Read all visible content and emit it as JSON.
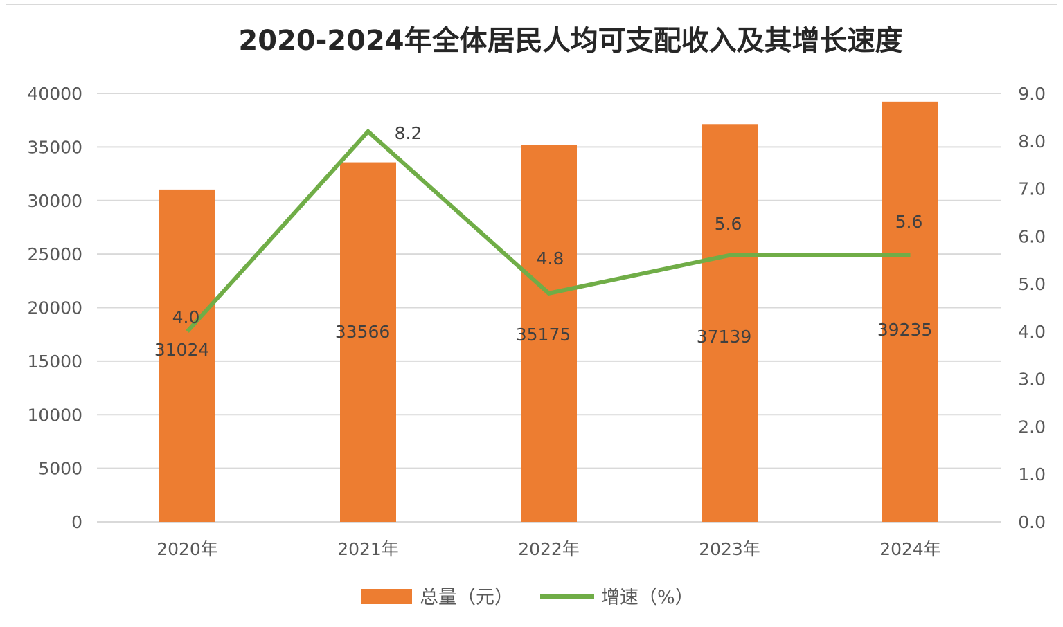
{
  "chart_data": {
    "type": "bar",
    "title": "2020-2024年全体居民人均可支配收入及其增长速度",
    "categories": [
      "2020年",
      "2021年",
      "2022年",
      "2023年",
      "2024年"
    ],
    "series": [
      {
        "name": "总量（元）",
        "type": "bar",
        "axis": "left",
        "color": "#ed7d31",
        "values": [
          31024,
          33566,
          35175,
          37139,
          39235
        ],
        "labels": [
          "31024",
          "33566",
          "35175",
          "37139",
          "39235"
        ]
      },
      {
        "name": "增速（%）",
        "type": "line",
        "axis": "right",
        "color": "#70ad47",
        "values": [
          4.0,
          8.2,
          4.8,
          5.6,
          5.6
        ],
        "labels": [
          "4.0",
          "8.2",
          "4.8",
          "5.6",
          "5.6"
        ]
      }
    ],
    "y_left": {
      "ylim": [
        0,
        40000
      ],
      "ticks": [
        0,
        5000,
        10000,
        15000,
        20000,
        25000,
        30000,
        35000,
        40000
      ],
      "tick_labels": [
        "0",
        "5000",
        "10000",
        "15000",
        "20000",
        "25000",
        "30000",
        "35000",
        "40000"
      ]
    },
    "y_right": {
      "ylim": [
        0,
        9
      ],
      "ticks": [
        0,
        1,
        2,
        3,
        4,
        5,
        6,
        7,
        8,
        9
      ],
      "tick_labels": [
        "0.0",
        "1.0",
        "2.0",
        "3.0",
        "4.0",
        "5.0",
        "6.0",
        "7.0",
        "8.0",
        "9.0"
      ]
    },
    "grid": true,
    "legend_position": "bottom",
    "colors": {
      "grid": "#d9d9d9",
      "axis_text": "#595959",
      "title": "#262626",
      "label": "#404040"
    }
  }
}
